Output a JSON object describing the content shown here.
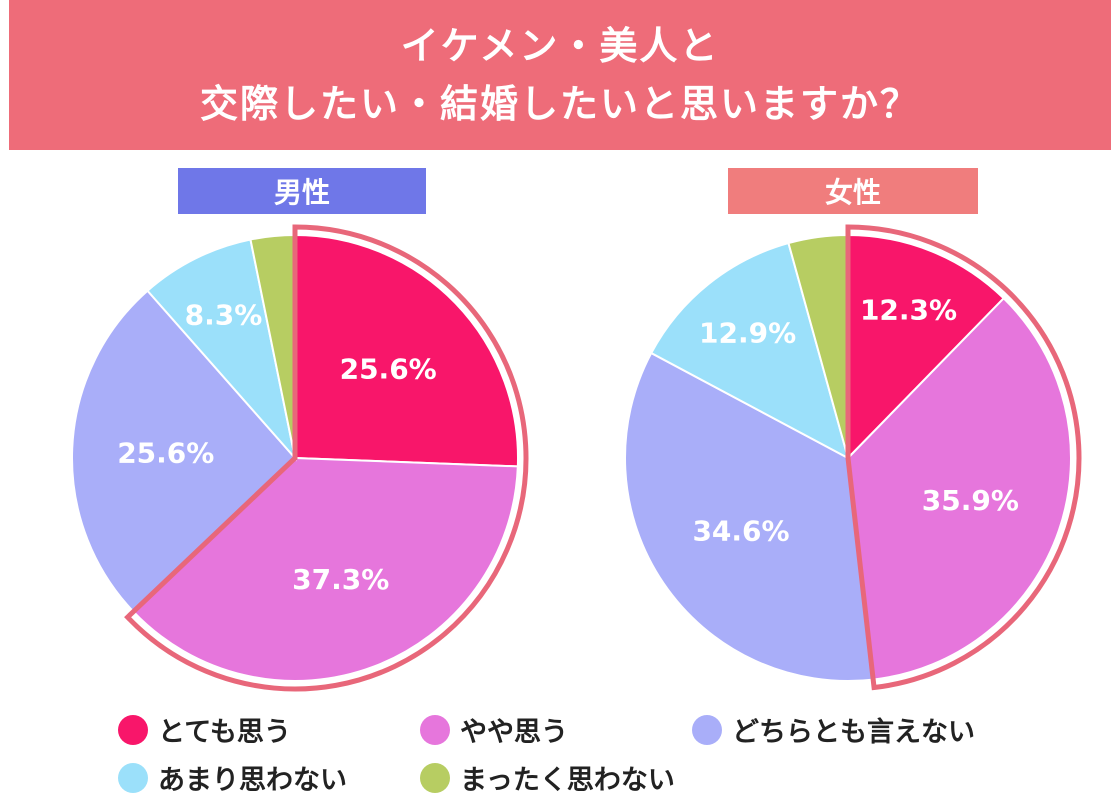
{
  "title": {
    "line1": "イケメン・美人と",
    "line2": "交際したい・結婚したいと思いますか？"
  },
  "colors": {
    "banner": "#ee6c79",
    "male_header": "#6f77e8",
    "female_header": "#f07d7d",
    "highlight_outline": "#e8677a"
  },
  "legend": [
    {
      "label": "とても思う",
      "color": "#f8166a"
    },
    {
      "label": "やや思う",
      "color": "#e676dc"
    },
    {
      "label": "どちらとも言えない",
      "color": "#a9aef9"
    },
    {
      "label": "あまり思わない",
      "color": "#9be0fa"
    },
    {
      "label": "まったく思わない",
      "color": "#b7cd62"
    }
  ],
  "chart_data": [
    {
      "type": "pie",
      "title": "男性",
      "categories": [
        "とても思う",
        "やや思う",
        "どちらとも言えない",
        "あまり思わない",
        "まったく思わない"
      ],
      "values": [
        25.6,
        37.3,
        25.6,
        8.3,
        3.2
      ],
      "labels": [
        "25.6%",
        "37.3%",
        "25.6%",
        "8.3%",
        ""
      ],
      "highlighted": [
        "とても思う",
        "やや思う"
      ]
    },
    {
      "type": "pie",
      "title": "女性",
      "categories": [
        "とても思う",
        "やや思う",
        "どちらとも言えない",
        "あまり思わない",
        "まったく思わない"
      ],
      "values": [
        12.3,
        35.9,
        34.6,
        12.9,
        4.3
      ],
      "labels": [
        "12.3%",
        "35.9%",
        "34.6%",
        "12.9%",
        ""
      ],
      "highlighted": [
        "とても思う",
        "やや思う"
      ]
    }
  ]
}
